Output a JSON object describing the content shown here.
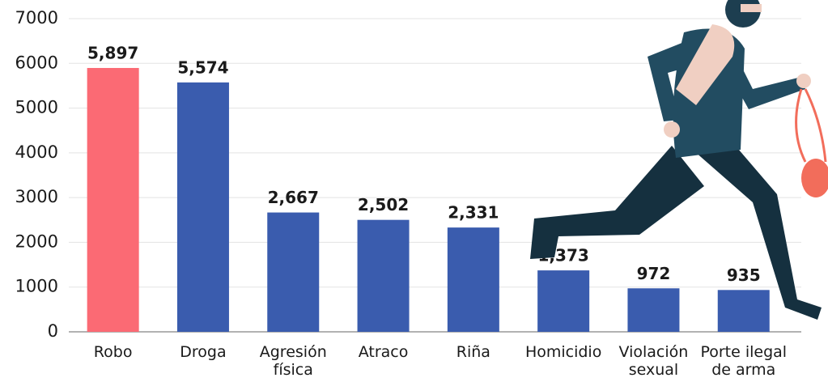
{
  "chart_data": {
    "type": "bar",
    "categories": [
      "Robo",
      "Droga",
      "Agresión física",
      "Atraco",
      "Riña",
      "Homicidio",
      "Violación sexual",
      "Porte ilegal de arma"
    ],
    "values": [
      5897,
      5574,
      2667,
      2502,
      2331,
      1373,
      972,
      935
    ],
    "value_labels": [
      "5,897",
      "5,574",
      "2,667",
      "2,502",
      "2,331",
      "1,373",
      "972",
      "935"
    ],
    "colors": [
      "#fb6a74",
      "#3a5cae",
      "#3a5cae",
      "#3a5cae",
      "#3a5cae",
      "#3a5cae",
      "#3a5cae",
      "#3a5cae"
    ],
    "ylim": [
      0,
      7000
    ],
    "yticks": [
      0,
      1000,
      2000,
      3000,
      4000,
      5000,
      6000,
      7000
    ],
    "grid": true
  }
}
